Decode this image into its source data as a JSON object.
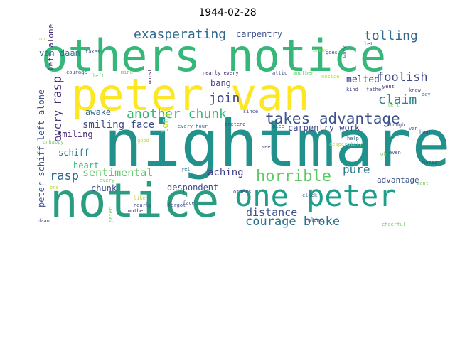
{
  "title": "1944-02-28",
  "words": [
    {
      "text": "nightmare",
      "color": "#21918c"
    },
    {
      "text": "others notice",
      "color": "#35b779"
    },
    {
      "text": "peter van",
      "color": "#fde725"
    },
    {
      "text": "notice",
      "color": "#2a9d80"
    },
    {
      "text": "one peter",
      "color": "#1f9e89"
    },
    {
      "text": "takes advantage",
      "color": "#3b528b"
    },
    {
      "text": "exasperating",
      "color": "#31688e"
    },
    {
      "text": "horrible",
      "color": "#5ec962"
    },
    {
      "text": "another chunk",
      "color": "#35b779"
    },
    {
      "text": "courage broke",
      "color": "#2c728e"
    },
    {
      "text": "tolling",
      "color": "#31688e"
    },
    {
      "text": "claim",
      "color": "#26828e"
    },
    {
      "text": "foolish",
      "color": "#3e4a89"
    },
    {
      "text": "join",
      "color": "#414487"
    },
    {
      "text": "distance",
      "color": "#3b528b"
    },
    {
      "text": "pure",
      "color": "#2a788e"
    },
    {
      "text": "rasp",
      "color": "#482878"
    },
    {
      "text": "every",
      "color": "#443983"
    },
    {
      "text": "rasp",
      "color": "#31688e"
    },
    {
      "text": "sentimental",
      "color": "#5ec962"
    },
    {
      "text": "smiling face",
      "color": "#3e4a89"
    },
    {
      "text": "aching",
      "color": "#433e85"
    },
    {
      "text": "carpentry",
      "color": "#3b528b"
    },
    {
      "text": "van daan",
      "color": "#2c728e"
    },
    {
      "text": "bang",
      "color": "#443983"
    },
    {
      "text": "melted",
      "color": "#3e4a89"
    },
    {
      "text": "awake",
      "color": "#31688e"
    },
    {
      "text": "smiling",
      "color": "#482878"
    },
    {
      "text": "long",
      "color": "#b5de2b"
    },
    {
      "text": "carpentry work",
      "color": "#3e4a89"
    },
    {
      "text": "schiff",
      "color": "#2a788e"
    },
    {
      "text": "heart",
      "color": "#35b779"
    },
    {
      "text": "chunk",
      "color": "#3e4a89"
    },
    {
      "text": "advantage",
      "color": "#3b528b"
    },
    {
      "text": "despondent",
      "color": "#3e4a89"
    },
    {
      "text": "peter schiff left alone",
      "color": "#3b528b"
    },
    {
      "text": "left alone",
      "color": "#482878"
    },
    {
      "text": "courage",
      "color": "#3e4a89"
    },
    {
      "text": "left",
      "color": "#6ece58"
    },
    {
      "text": "mind",
      "color": "#6ece58"
    },
    {
      "text": "nearly every",
      "color": "#482878"
    },
    {
      "text": "attic",
      "color": "#3e4a89"
    },
    {
      "text": "another",
      "color": "#5ec962"
    },
    {
      "text": "every hour",
      "color": "#31688e"
    },
    {
      "text": "pretend",
      "color": "#3e4a89"
    },
    {
      "text": "nice",
      "color": "#3e4a89"
    },
    {
      "text": "since",
      "color": "#3e4a89"
    },
    {
      "text": "see",
      "color": "#3e4a89"
    },
    {
      "text": "yet",
      "color": "#2a788e"
    },
    {
      "text": "face",
      "color": "#3e4a89"
    },
    {
      "text": "clock",
      "color": "#31688e"
    },
    {
      "text": "others",
      "color": "#3e4a89"
    },
    {
      "text": "worst",
      "color": "#440154"
    },
    {
      "text": "nearly",
      "color": "#3e4a89"
    },
    {
      "text": "mother",
      "color": "#482878"
    },
    {
      "text": "alone",
      "color": "#3e4a89"
    },
    {
      "text": "every",
      "color": "#6ece58"
    },
    {
      "text": "like",
      "color": "#b5de2b"
    },
    {
      "text": "good",
      "color": "#b5de2b"
    },
    {
      "text": "unhappy",
      "color": "#6ece58"
    },
    {
      "text": "daan",
      "color": "#3e4a89"
    },
    {
      "text": "one",
      "color": "#b5de2b"
    },
    {
      "text": "peter",
      "color": "#6ece58"
    },
    {
      "text": "takes",
      "color": "#3e4a89"
    },
    {
      "text": "oh",
      "color": "#b5de2b"
    },
    {
      "text": "goes",
      "color": "#3e4a89"
    },
    {
      "text": "work",
      "color": "#3e4a89"
    },
    {
      "text": "let",
      "color": "#3e4a89"
    },
    {
      "text": "kind",
      "color": "#3e4a89"
    },
    {
      "text": "father",
      "color": "#3e4a89"
    },
    {
      "text": "went",
      "color": "#482878"
    },
    {
      "text": "know",
      "color": "#3e4a89"
    },
    {
      "text": "day",
      "color": "#2a788e"
    },
    {
      "text": "left",
      "color": "#6ece58"
    },
    {
      "text": "help",
      "color": "#31688e"
    },
    {
      "text": "desperately",
      "color": "#b5de2b"
    },
    {
      "text": "cheerful",
      "color": "#6ece58"
    },
    {
      "text": "though",
      "color": "#3e4a89"
    },
    {
      "text": "hour",
      "color": "#3e4a89"
    },
    {
      "text": "van",
      "color": "#3e4a89"
    },
    {
      "text": "even",
      "color": "#3e4a89"
    },
    {
      "text": "makes",
      "color": "#3e4a89"
    },
    {
      "text": "want",
      "color": "#6ece58"
    },
    {
      "text": "broke",
      "color": "#b5de2b"
    },
    {
      "text": "notice",
      "color": "#b5de2b"
    },
    {
      "text": "forgot",
      "color": "#3e4a89"
    },
    {
      "text": "oh",
      "color": "#6ece58"
    }
  ]
}
